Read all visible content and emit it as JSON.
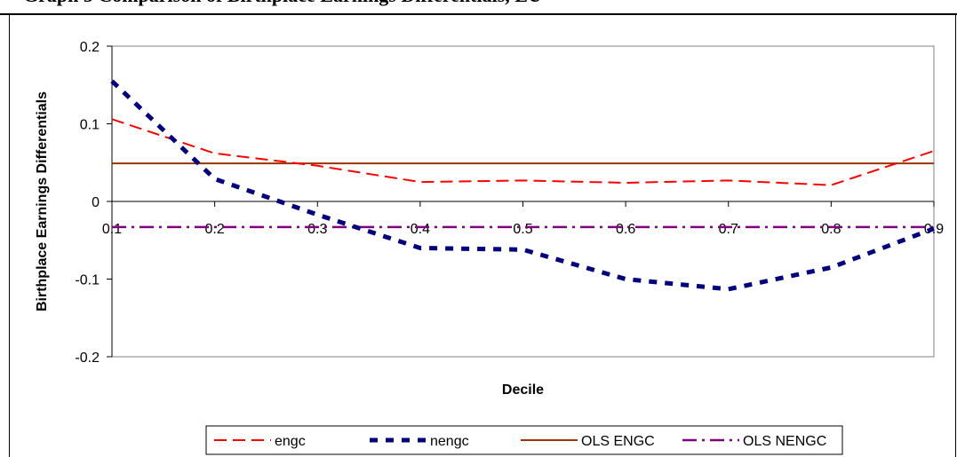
{
  "page_title": "Graph 5 Comparison of Birthplace Earnings Differentials, EU",
  "chart_data": {
    "type": "line",
    "title": "",
    "xlabel": "Decile",
    "ylabel": "Birthplace Earnings Differentials",
    "x": [
      0.1,
      0.2,
      0.3,
      0.4,
      0.5,
      0.6,
      0.7,
      0.8,
      0.9
    ],
    "x_tick_labels": [
      "0.1",
      "0.2",
      "0.3",
      "0.4",
      "0.5",
      "0.6",
      "0.7",
      "0.8",
      "0.9"
    ],
    "y_tick_labels": [
      "0.2",
      "0.1",
      "0",
      "-0.1",
      "-0.2"
    ],
    "y_ticks": [
      0.2,
      0.1,
      0,
      -0.1,
      -0.2
    ],
    "xlim": [
      0.1,
      0.9
    ],
    "ylim": [
      -0.2,
      0.2
    ],
    "grid": false,
    "legend_position": "bottom",
    "series": [
      {
        "name": "engc",
        "values": [
          0.106,
          0.062,
          0.046,
          0.025,
          0.027,
          0.024,
          0.027,
          0.021,
          0.065
        ],
        "color": "#ff0000",
        "style": "dashed"
      },
      {
        "name": "nengc",
        "values": [
          0.155,
          0.029,
          -0.017,
          -0.06,
          -0.062,
          -0.1,
          -0.113,
          -0.085,
          -0.035
        ],
        "color": "#000080",
        "style": "dotted-heavy"
      },
      {
        "name": "OLS ENGC",
        "values": [
          0.049,
          0.049,
          0.049,
          0.049,
          0.049,
          0.049,
          0.049,
          0.049,
          0.049
        ],
        "color": "#993300",
        "style": "solid"
      },
      {
        "name": "OLS NENGC",
        "values": [
          -0.033,
          -0.033,
          -0.033,
          -0.033,
          -0.033,
          -0.033,
          -0.033,
          -0.033,
          -0.033
        ],
        "color": "#800080",
        "style": "dash-dot"
      }
    ]
  }
}
